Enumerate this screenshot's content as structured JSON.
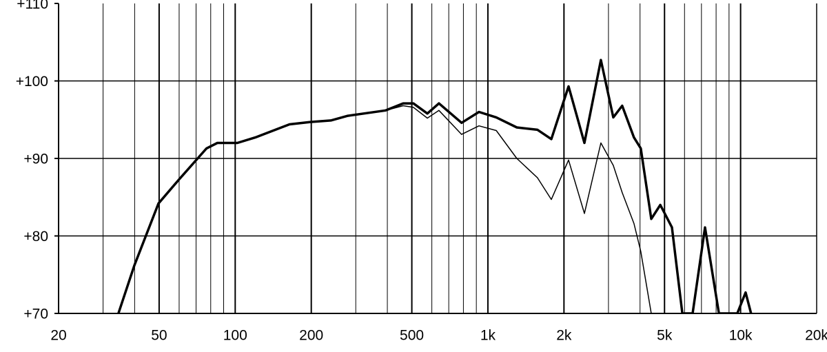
{
  "chart_data": {
    "type": "line",
    "xscale": "log",
    "grid": true,
    "x": [
      34.5,
      39.9,
      49.7,
      60,
      77,
      85,
      102,
      120,
      164,
      198,
      239,
      279,
      394,
      462,
      507,
      576,
      640,
      787,
      922,
      1079,
      1301,
      1571,
      1783,
      2085,
      2410,
      2800,
      3134,
      3400,
      3785,
      4028,
      4430,
      4810,
      5350,
      5880,
      6460,
      7230,
      8210,
      9700,
      10470,
      11000
    ],
    "series": [
      {
        "color": "#000000",
        "width": 3.5,
        "values": [
          70,
          76.2,
          84.2,
          87.3,
          91.3,
          92.0,
          92.0,
          92.7,
          94.4,
          94.7,
          94.9,
          95.5,
          96.2,
          97.1,
          97.1,
          95.8,
          97.1,
          94.6,
          96.0,
          95.3,
          94.0,
          93.7,
          92.5,
          99.3,
          92.0,
          102.7,
          95.3,
          96.8,
          92.7,
          91.3,
          82.2,
          84.0,
          81.1,
          70,
          70,
          81.1,
          70,
          70,
          72.7,
          70
        ]
      },
      {
        "color": "#000000",
        "width": 1.5,
        "values": [
          70,
          76.2,
          84.2,
          87.3,
          91.3,
          92.0,
          92.0,
          92.7,
          94.4,
          94.7,
          94.9,
          95.5,
          96.2,
          96.8,
          96.6,
          95.2,
          96.2,
          93.1,
          94.2,
          93.6,
          90.0,
          87.5,
          84.7,
          89.8,
          82.9,
          92.0,
          89.1,
          85.6,
          81.6,
          78.0,
          70,
          null,
          null,
          null,
          null,
          null,
          null,
          null,
          null,
          null
        ]
      }
    ],
    "xlim": [
      20,
      20000
    ],
    "xticks": [
      20,
      50,
      100,
      200,
      500,
      {
        "value": 1000,
        "label": "1k"
      },
      {
        "value": 2000,
        "label": "2k"
      },
      {
        "value": 5000,
        "label": "5k"
      },
      {
        "value": 10000,
        "label": "10k"
      },
      {
        "value": 20000,
        "label": "20k"
      }
    ],
    "ylim": [
      70,
      110
    ],
    "yticks": [
      {
        "value": 70,
        "label": "+70"
      },
      {
        "value": 80,
        "label": "+80"
      },
      {
        "value": 90,
        "label": "+90"
      },
      {
        "value": 100,
        "label": "+100"
      },
      {
        "value": 110,
        "label": "+110"
      }
    ]
  }
}
